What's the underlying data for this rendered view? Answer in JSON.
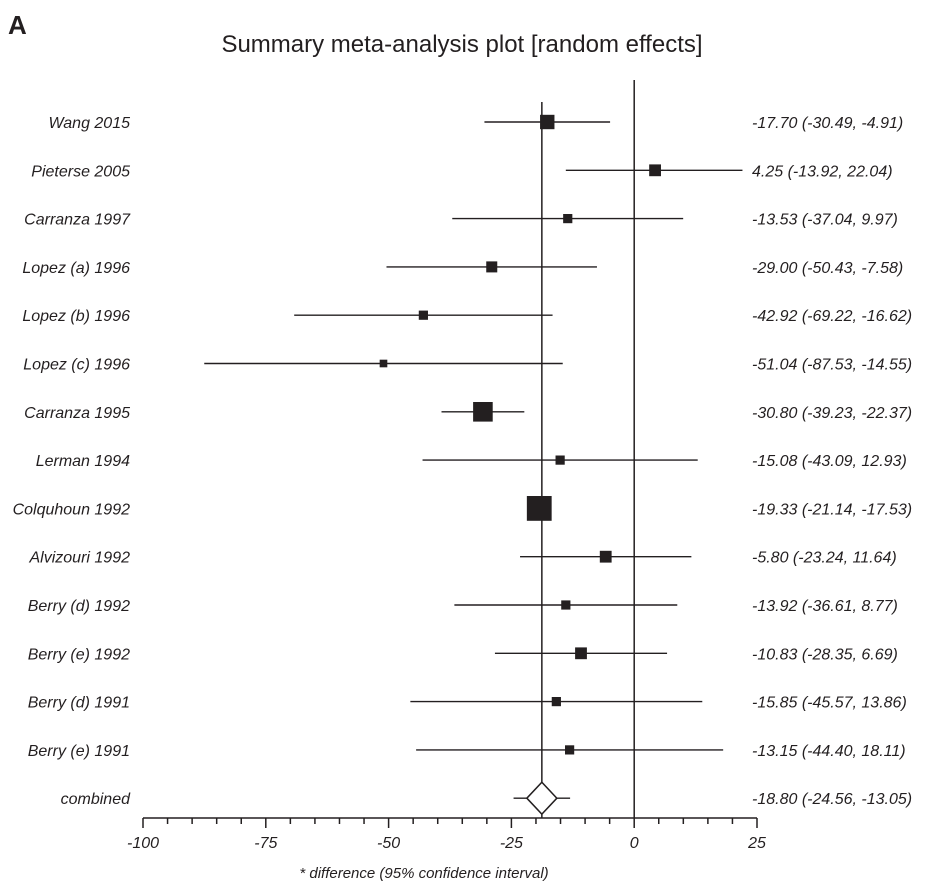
{
  "chart_data": {
    "type": "forest",
    "panel_label": "A",
    "title": "Summary meta-analysis plot [random effects]",
    "xlabel": "* difference (95% confidence interval)",
    "xlim": [
      -100,
      25
    ],
    "xticks": [
      "-100",
      "-75",
      "-50",
      "-25",
      "0",
      "25"
    ],
    "reference_line": 0,
    "pooled_line": -18.8,
    "studies": [
      {
        "name": "Wang 2015",
        "est": -17.7,
        "lo": -30.49,
        "hi": -4.91,
        "label": "-17.70 (-30.49, -4.91)",
        "weight": 4
      },
      {
        "name": "Pieterse 2005",
        "est": 4.25,
        "lo": -13.92,
        "hi": 22.04,
        "label": "4.25 (-13.92, 22.04)",
        "weight": 3
      },
      {
        "name": "Carranza 1997",
        "est": -13.53,
        "lo": -37.04,
        "hi": 9.97,
        "label": "-13.53 (-37.04, 9.97)",
        "weight": 2
      },
      {
        "name": "Lopez (a) 1996",
        "est": -29.0,
        "lo": -50.43,
        "hi": -7.58,
        "label": "-29.00 (-50.43, -7.58)",
        "weight": 2.7
      },
      {
        "name": "Lopez (b) 1996",
        "est": -42.92,
        "lo": -69.22,
        "hi": -16.62,
        "label": "-42.92 (-69.22, -16.62)",
        "weight": 2
      },
      {
        "name": "Lopez (c) 1996",
        "est": -51.04,
        "lo": -87.53,
        "hi": -14.55,
        "label": "-51.04 (-87.53, -14.55)",
        "weight": 1.4
      },
      {
        "name": "Carranza 1995",
        "est": -30.8,
        "lo": -39.23,
        "hi": -22.37,
        "label": "-30.80 (-39.23, -22.37)",
        "weight": 6
      },
      {
        "name": "Lerman 1994",
        "est": -15.08,
        "lo": -43.09,
        "hi": 12.93,
        "label": "-15.08 (-43.09, 12.93)",
        "weight": 2
      },
      {
        "name": "Colquhoun 1992",
        "est": -19.33,
        "lo": -21.14,
        "hi": -17.53,
        "label": "-19.33 (-21.14, -17.53)",
        "weight": 8
      },
      {
        "name": "Alvizouri 1992",
        "est": -5.8,
        "lo": -23.24,
        "hi": 11.64,
        "label": "-5.80 (-23.24, 11.64)",
        "weight": 3
      },
      {
        "name": "Berry (d) 1992",
        "est": -13.92,
        "lo": -36.61,
        "hi": 8.77,
        "label": "-13.92 (-36.61, 8.77)",
        "weight": 2
      },
      {
        "name": "Berry (e) 1992",
        "est": -10.83,
        "lo": -28.35,
        "hi": 6.69,
        "label": "-10.83 (-28.35, 6.69)",
        "weight": 3
      },
      {
        "name": "Berry (d) 1991",
        "est": -15.85,
        "lo": -45.57,
        "hi": 13.86,
        "label": "-15.85 (-45.57, 13.86)",
        "weight": 2
      },
      {
        "name": "Berry (e) 1991",
        "est": -13.15,
        "lo": -44.4,
        "hi": 18.11,
        "label": "-13.15 (-44.40, 18.11)",
        "weight": 2
      }
    ],
    "combined": {
      "name": "combined",
      "est": -18.8,
      "lo": -24.56,
      "hi": -13.05,
      "label": "-18.80 (-24.56, -13.05)"
    }
  }
}
